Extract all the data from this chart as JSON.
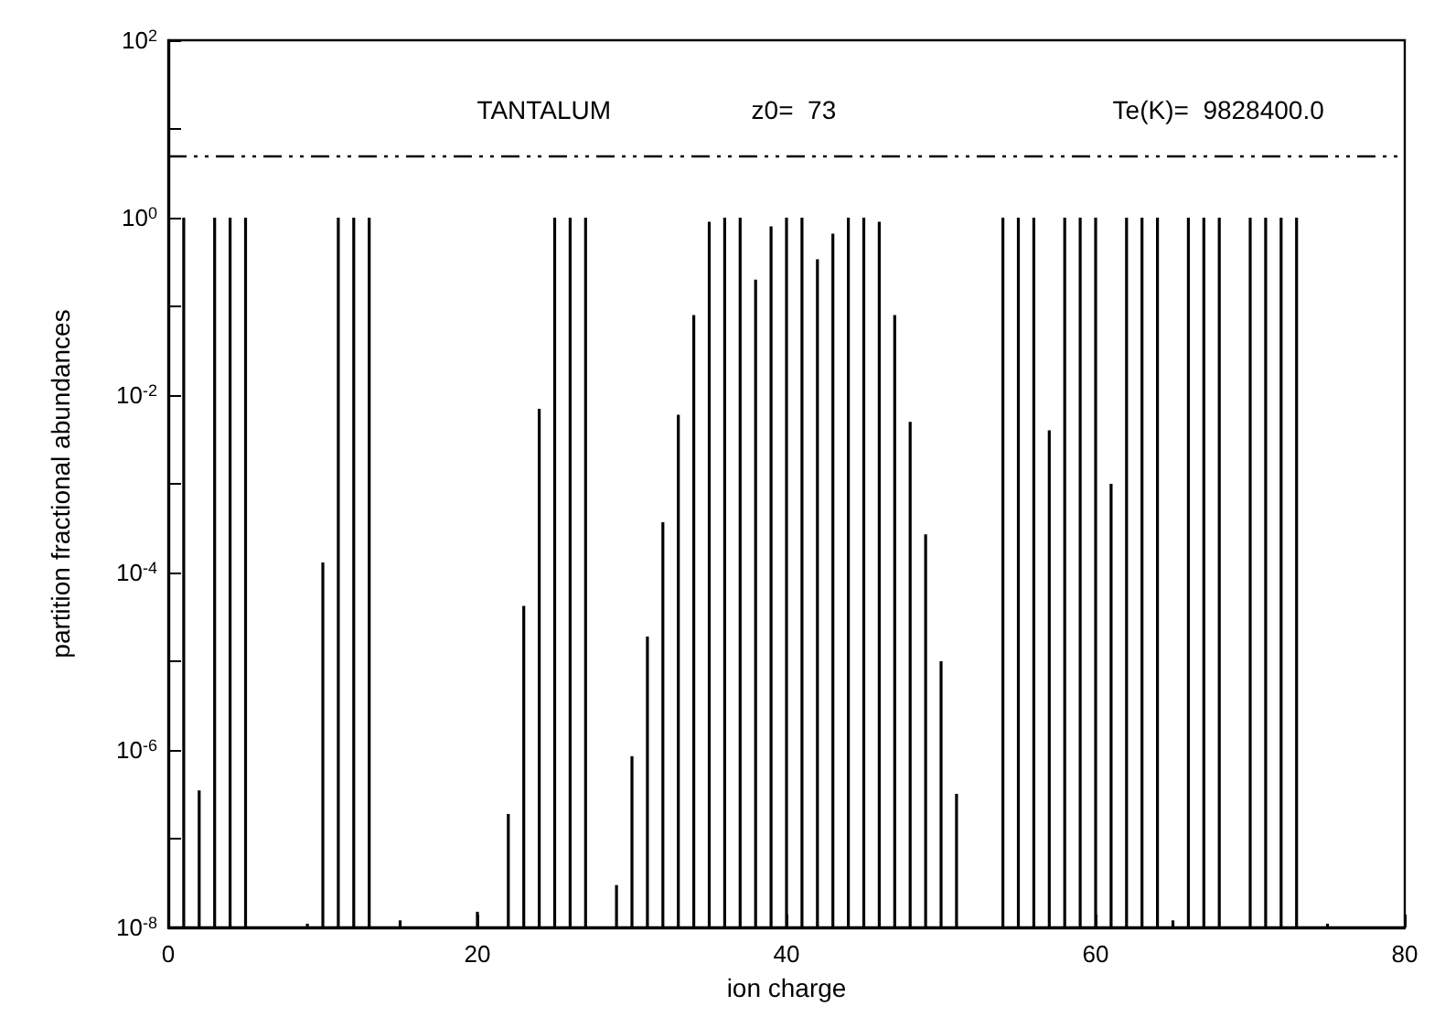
{
  "chart_data": {
    "type": "bar",
    "xlabel": "ion charge",
    "ylabel": "partition fractional abundances",
    "annotations": [
      "TANTALUM",
      "z0=  73",
      "Te(K)=  9828400.0"
    ],
    "x": [
      1,
      2,
      3,
      4,
      5,
      6,
      7,
      8,
      9,
      10,
      11,
      12,
      13,
      14,
      15,
      16,
      17,
      18,
      19,
      20,
      21,
      22,
      23,
      24,
      25,
      26,
      27,
      28,
      29,
      30,
      31,
      32,
      33,
      34,
      35,
      36,
      37,
      38,
      39,
      40,
      41,
      42,
      43,
      44,
      45,
      46,
      47,
      48,
      49,
      50,
      51,
      52,
      53,
      54,
      55,
      56,
      57,
      58,
      59,
      60,
      61,
      62,
      63,
      64,
      65,
      66,
      67,
      68,
      69,
      70,
      71,
      72,
      73,
      74,
      75
    ],
    "series": [
      {
        "color": "#000000",
        "values": [
          1,
          3.5e-07,
          1,
          1,
          1,
          null,
          null,
          null,
          1.1e-08,
          0.00013,
          1,
          1,
          1,
          null,
          1.2e-08,
          null,
          null,
          null,
          null,
          1.5e-08,
          null,
          1.9e-07,
          4.2e-05,
          0.007,
          1,
          1,
          1,
          null,
          3e-08,
          8.5e-07,
          1.9e-05,
          0.00037,
          0.006,
          0.08,
          0.9,
          1,
          1,
          0.2,
          0.8,
          1,
          1,
          0.34,
          0.66,
          1,
          1,
          0.9,
          0.08,
          0.005,
          0.00027,
          1e-05,
          3.2e-07,
          null,
          null,
          1,
          1,
          1,
          0.004,
          1,
          1,
          1,
          0.001,
          1,
          1,
          1,
          1.2e-08,
          1,
          1,
          1,
          null,
          1,
          1,
          1,
          1,
          null,
          1.1e-08
        ]
      }
    ],
    "log": "y",
    "xlim": [
      0,
      80
    ],
    "xticks": [
      0,
      20,
      40,
      60,
      80
    ],
    "ylim": [
      1e-08,
      100
    ],
    "yticks": [
      {
        "value": 1e-08,
        "label": "10$^{-8}$"
      },
      {
        "value": 1e-07,
        "label": null
      },
      {
        "value": 1e-06,
        "label": "10$^{-6}$"
      },
      {
        "value": 1e-05,
        "label": null
      },
      {
        "value": 0.0001,
        "label": "10$^{-4}$"
      },
      {
        "value": 0.001,
        "label": null
      },
      {
        "value": 0.01,
        "label": "10$^{-2}$"
      },
      {
        "value": 0.1,
        "label": null
      },
      {
        "value": 1,
        "label": "10$^{0}$"
      },
      {
        "value": 10,
        "label": null
      },
      {
        "value": 100,
        "label": "10$^{2}$"
      }
    ],
    "ref_lines": [
      {
        "axis": "y",
        "value": 5,
        "line_style": "dashed",
        "color": "#000000"
      }
    ],
    "grid": false
  }
}
